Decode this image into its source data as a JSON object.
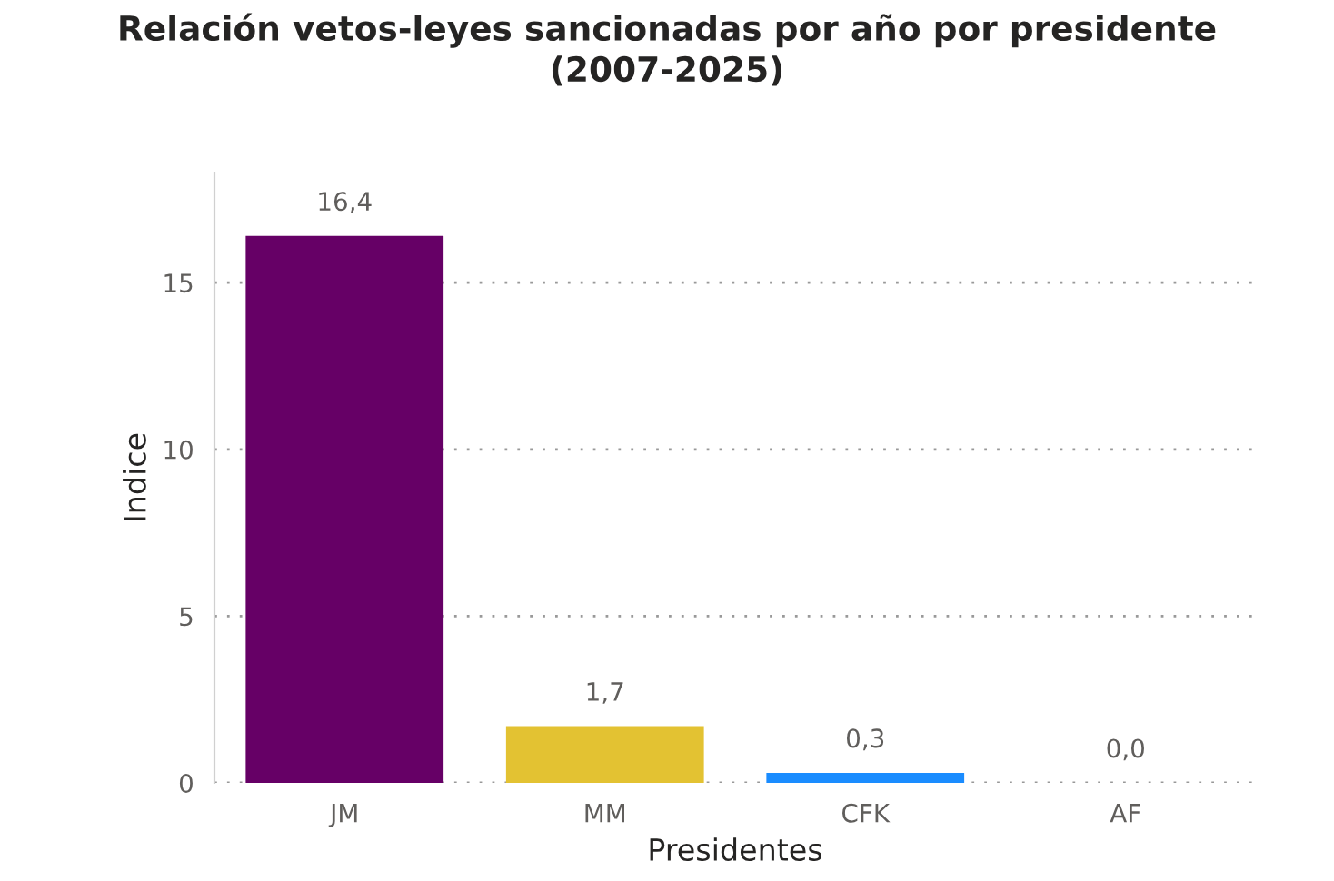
{
  "chart_data": {
    "type": "bar",
    "title": "Relación vetos-leyes sancionadas por año por presidente\n(2007-2025)",
    "xlabel": "Presidentes",
    "ylabel": "Indice",
    "categories": [
      "JM",
      "MM",
      "CFK",
      "AF"
    ],
    "values": [
      16.4,
      1.7,
      0.3,
      0.0
    ],
    "colors": [
      "#660066",
      "#e3c232",
      "#1a8cff",
      "#888888"
    ],
    "value_labels": [
      "16,4",
      "1,7",
      "0,3",
      "0,0"
    ],
    "ylim": [
      0,
      18.3
    ],
    "yticks": [
      0,
      5,
      10,
      15
    ],
    "grid": "y"
  }
}
